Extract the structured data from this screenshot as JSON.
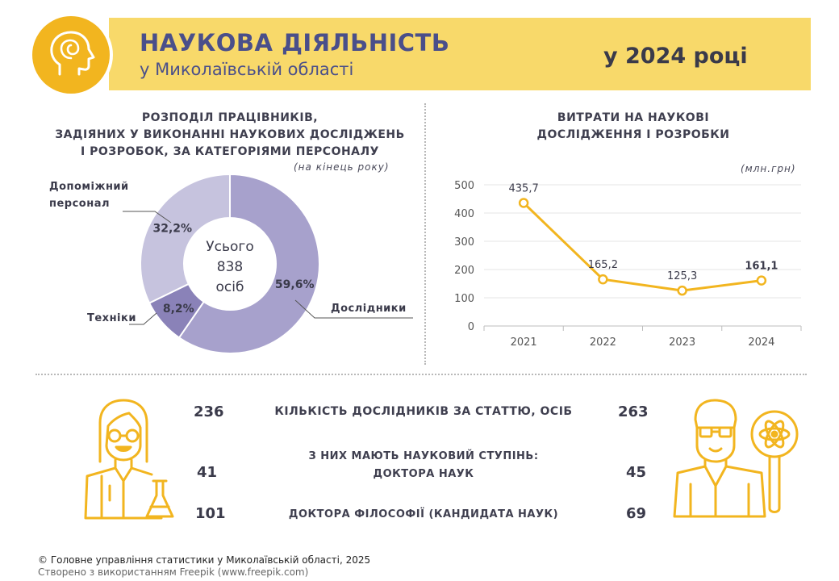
{
  "header": {
    "title": "НАУКОВА ДІЯЛЬНІСТЬ",
    "subtitle": "у Миколаївській області",
    "year": "у 2024 році",
    "accent": "#f2b51f",
    "band_color": "#f8d96a",
    "icon": "head-brain-icon"
  },
  "donut": {
    "title_lines": [
      "РОЗПОДІЛ ПРАЦІВНИКІВ,",
      "ЗАДІЯНИХ У ВИКОНАННІ НАУКОВИХ ДОСЛІДЖЕНЬ",
      "І РОЗРОБОК, ЗА КАТЕГОРІЯМИ ПЕРСОНАЛУ"
    ],
    "note": "(на кінець року)",
    "center_line1": "Усього",
    "center_value": "838",
    "center_line3": "осіб",
    "label_aux_1": "Допоміжний",
    "label_aux_2": "персонал",
    "label_tech": "Техніки",
    "label_res": "Дослідники"
  },
  "line": {
    "title_lines": [
      "ВИТРАТИ НА НАУКОВІ",
      "ДОСЛІДЖЕННЯ І РОЗРОБКИ"
    ],
    "note": "(млн.грн)"
  },
  "chart_data": [
    {
      "type": "pie",
      "categories": [
        "Дослідники",
        "Техніки",
        "Допоміжний персонал"
      ],
      "values": [
        59.6,
        8.2,
        32.2
      ],
      "labels": [
        "59,6%",
        "8,2%",
        "32,2%"
      ],
      "colors": [
        "#a7a1cc",
        "#8a82b8",
        "#c6c3de"
      ],
      "total": 838
    },
    {
      "type": "line",
      "x": [
        "2021",
        "2022",
        "2023",
        "2024"
      ],
      "values": [
        435.7,
        165.2,
        125.3,
        161.1
      ],
      "value_labels": [
        "435,7",
        "165,2",
        "125,3",
        "161,1"
      ],
      "yticks": [
        "0",
        "100",
        "200",
        "300",
        "400",
        "500"
      ],
      "ylim": [
        0,
        500
      ],
      "grid": true,
      "color": "#f2b51f"
    }
  ],
  "stats": {
    "researchers_left": "236",
    "researchers_label": "КІЛЬКІСТЬ ДОСЛІДНИКІВ ЗА СТАТТЮ, ОСІБ",
    "researchers_right": "263",
    "degree_label": "З НИХ МАЮТЬ НАУКОВИЙ СТУПІНЬ:",
    "doctors_left": "41",
    "doctors_label": "ДОКТОРА НАУК",
    "doctors_right": "45",
    "phd_left": "101",
    "phd_label": "ДОКТОРА ФІЛОСОФІЇ (КАНДИДАТА НАУК)",
    "phd_right": "69",
    "left_icon": "woman-scientist-icon",
    "right_icon": "man-scientist-icon"
  },
  "footer": {
    "line1": "© Головне управління статистики у Миколаївській області, 2025",
    "line2": "Створено з використанням Freepik (www.freepik.com)"
  }
}
